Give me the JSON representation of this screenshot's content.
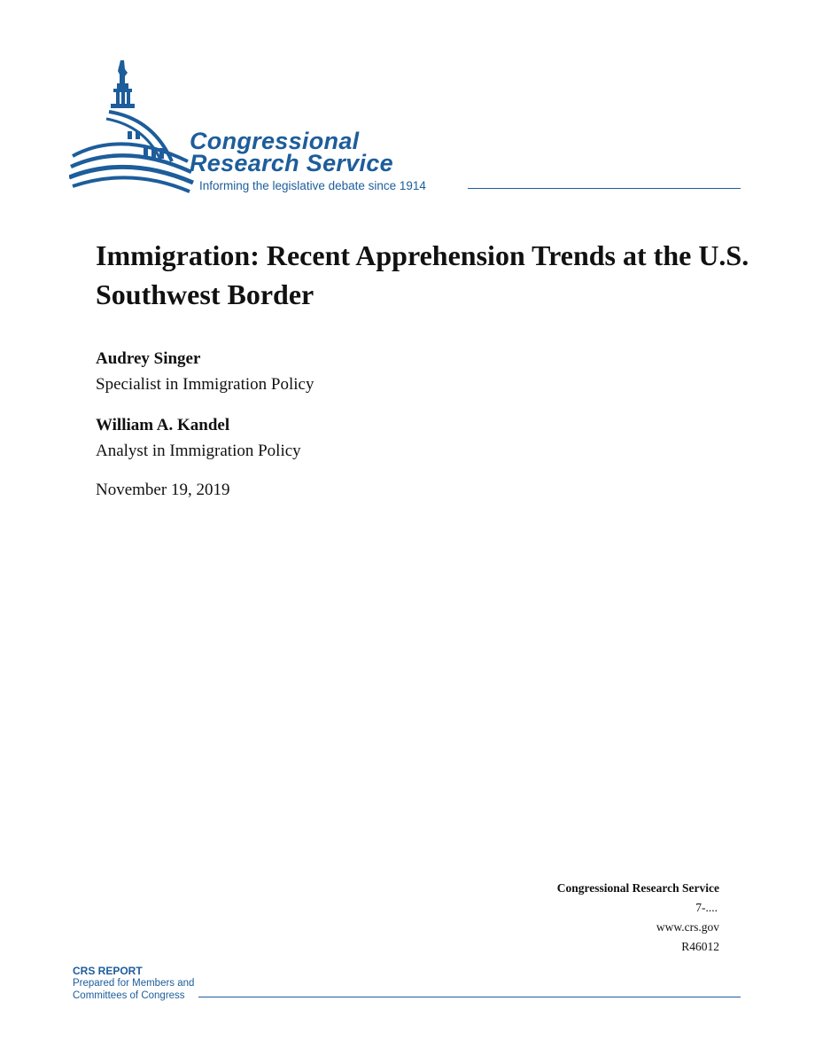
{
  "logo": {
    "line1": "Congressional",
    "line2": "Research Service",
    "tagline": "Informing the legislative debate since 1914"
  },
  "report": {
    "title": "Immigration: Recent Apprehension Trends at the U.S. Southwest Border",
    "authors": [
      {
        "name": "Audrey Singer",
        "role": "Specialist in Immigration Policy"
      },
      {
        "name": "William A. Kandel",
        "role": "Analyst in Immigration Policy"
      }
    ],
    "date": "November 19, 2019"
  },
  "meta": {
    "org": "Congressional Research Service",
    "phone": "7-....",
    "website": "www.crs.gov",
    "report_number": "R46012"
  },
  "footer": {
    "label": "CRS REPORT",
    "line2": "Prepared for Members and",
    "line3": "Committees of Congress"
  },
  "colors": {
    "brand_blue": "#1d5d9b"
  }
}
